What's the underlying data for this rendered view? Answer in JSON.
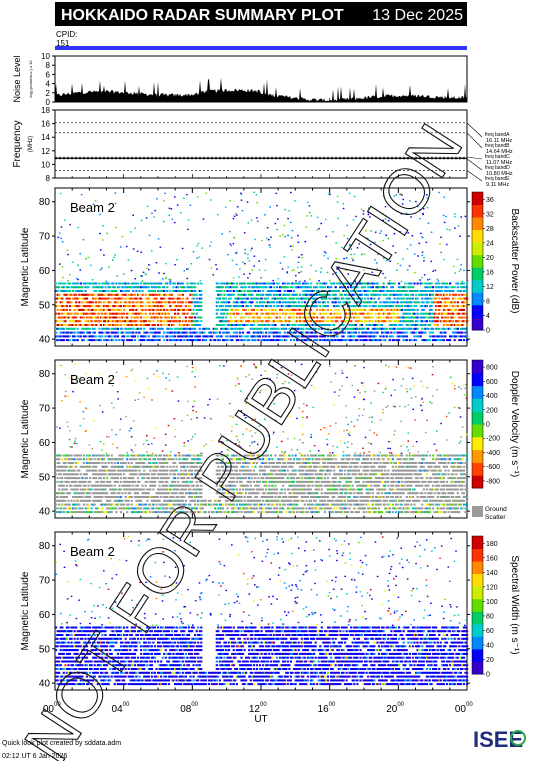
{
  "header": {
    "title": "HOKKAIDO RADAR SUMMARY PLOT",
    "date": "13 Dec 2025",
    "cpid_label": "CPID:",
    "cpid_value": "151"
  },
  "noise_panel": {
    "ylabel": "Noise Level",
    "ylabel_sub": "log₁₀(noise/a.u.) x 10",
    "yticks": [
      "0",
      "2",
      "4",
      "6",
      "8",
      "10"
    ],
    "ylim": [
      0,
      10
    ]
  },
  "frequency_panel": {
    "ylabel": "Frequency",
    "ylabel_unit": "(MHz)",
    "yticks": [
      "8",
      "10",
      "12",
      "14",
      "16",
      "18"
    ],
    "ylim": [
      8,
      18
    ],
    "bands": [
      {
        "name": "freq bandA",
        "value": "16.11 MHz",
        "mhz": 16.11
      },
      {
        "name": "freq bandB",
        "value": "14.64 MHz",
        "mhz": 14.64
      },
      {
        "name": "freq bandC",
        "value": "11.07 MHz",
        "mhz": 11.07
      },
      {
        "name": "freq bandD",
        "value": "10.80 MHz",
        "mhz": 10.8
      },
      {
        "name": "freq bandE",
        "value": "9.11 MHz",
        "mhz": 9.11
      }
    ]
  },
  "chart_data": [
    {
      "type": "heatmap",
      "beam_label": "Beam  2",
      "ylabel": "Magnetic Latitude",
      "yticks": [
        "40",
        "50",
        "60",
        "70",
        "80"
      ],
      "ylim": [
        38,
        84
      ],
      "colorbar_label": "Backscatter Power (dB)",
      "colorbar_ticks": [
        "0",
        "4",
        "8",
        "12",
        "16",
        "20",
        "24",
        "28",
        "32",
        "36"
      ],
      "colorbar_range": [
        0,
        38
      ],
      "colorbar_colors": [
        "#3300cc",
        "#0000ff",
        "#0088ff",
        "#00cccc",
        "#00cc66",
        "#66dd00",
        "#ccee00",
        "#ffdd00",
        "#ff8800",
        "#ff3300",
        "#cc0000"
      ]
    },
    {
      "type": "heatmap",
      "beam_label": "Beam  2",
      "ylabel": "Magnetic Latitude",
      "yticks": [
        "40",
        "50",
        "60",
        "70",
        "80"
      ],
      "ylim": [
        38,
        84
      ],
      "colorbar_label": "Doppler Velocity (m s⁻¹)",
      "colorbar_ticks": [
        "-800",
        "-600",
        "-400",
        "-200",
        "0",
        "200",
        "400",
        "600",
        "800"
      ],
      "colorbar_range": [
        -900,
        900
      ],
      "colorbar_colors": [
        "#cc0000",
        "#ff4400",
        "#ff9900",
        "#ffee00",
        "#66dd00",
        "#00cc66",
        "#00cccc",
        "#0088ff",
        "#0000ff",
        "#3300cc"
      ],
      "ground_scatter_label_1": "Ground",
      "ground_scatter_label_2": "Scatter"
    },
    {
      "type": "heatmap",
      "beam_label": "Beam  2",
      "ylabel": "Magnetic Latitude",
      "yticks": [
        "40",
        "50",
        "60",
        "70",
        "80"
      ],
      "ylim": [
        38,
        84
      ],
      "colorbar_label": "Spectral Width (m s⁻¹)",
      "colorbar_ticks": [
        "0",
        "20",
        "40",
        "60",
        "80",
        "100",
        "120",
        "140",
        "160",
        "180"
      ],
      "colorbar_range": [
        0,
        190
      ],
      "colorbar_colors": [
        "#3300cc",
        "#0000ff",
        "#0088ff",
        "#00cccc",
        "#00cc66",
        "#66dd00",
        "#ccee00",
        "#ffdd00",
        "#ff8800",
        "#ff3300",
        "#cc0000"
      ]
    }
  ],
  "time_axis": {
    "label": "UT",
    "ticks": [
      {
        "h": "00",
        "m": "00",
        "hour": 0
      },
      {
        "h": "04",
        "m": "00",
        "hour": 4
      },
      {
        "h": "08",
        "m": "00",
        "hour": 8
      },
      {
        "h": "12",
        "m": "00",
        "hour": 12
      },
      {
        "h": "16",
        "m": "00",
        "hour": 16
      },
      {
        "h": "20",
        "m": "00",
        "hour": 20
      },
      {
        "h": "00",
        "m": "00",
        "hour": 24
      }
    ],
    "range": [
      0,
      24
    ]
  },
  "watermark": "NOT FOR PUBLICATION",
  "footer": {
    "line1": "Quick look plot created by sddata.adm",
    "line2": "02:12 UT  6 Jan 2026",
    "logo_text": "ISEE"
  }
}
